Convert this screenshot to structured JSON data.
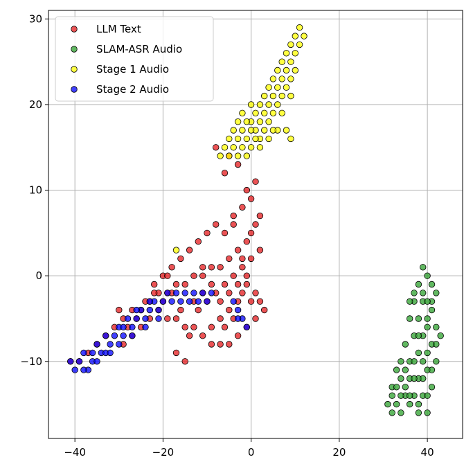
{
  "chart_data": {
    "type": "scatter",
    "title": "",
    "xlabel": "",
    "ylabel": "",
    "xlim": [
      -46,
      48
    ],
    "ylim": [
      -19,
      31
    ],
    "xticks": [
      -40,
      -20,
      0,
      20,
      40
    ],
    "yticks": [
      -10,
      0,
      10,
      20,
      30
    ],
    "xtick_labels": [
      "−40",
      "−20",
      "0",
      "20",
      "40"
    ],
    "ytick_labels": [
      "−10",
      "0",
      "10",
      "20",
      "30"
    ],
    "grid": true,
    "legend_position": "top-left",
    "series": [
      {
        "name": "LLM Text",
        "color": "#e41a1c",
        "points": [
          [
            -41,
            -10
          ],
          [
            -39,
            -10
          ],
          [
            -37,
            -9
          ],
          [
            -35,
            -8
          ],
          [
            -33,
            -7
          ],
          [
            -31,
            -6
          ],
          [
            -29,
            -5
          ],
          [
            -27,
            -4
          ],
          [
            -25,
            -4
          ],
          [
            -23,
            -3
          ],
          [
            -21,
            -2
          ],
          [
            -19,
            -2
          ],
          [
            -17,
            -1
          ],
          [
            -15,
            -1
          ],
          [
            -13,
            0
          ],
          [
            -11,
            0
          ],
          [
            -9,
            1
          ],
          [
            -7,
            1
          ],
          [
            -5,
            2
          ],
          [
            -3,
            3
          ],
          [
            -1,
            4
          ],
          [
            0,
            5
          ],
          [
            1,
            6
          ],
          [
            2,
            7
          ],
          [
            -2,
            8
          ],
          [
            0,
            9
          ],
          [
            -1,
            10
          ],
          [
            1,
            11
          ],
          [
            -6,
            12
          ],
          [
            -3,
            13
          ],
          [
            -5,
            14
          ],
          [
            -8,
            15
          ],
          [
            -4,
            6
          ],
          [
            -6,
            5
          ],
          [
            -2,
            2
          ],
          [
            -1,
            -1
          ],
          [
            1,
            -2
          ],
          [
            2,
            -3
          ],
          [
            3,
            -4
          ],
          [
            1,
            -5
          ],
          [
            -1,
            -6
          ],
          [
            -3,
            -7
          ],
          [
            -5,
            -8
          ],
          [
            -7,
            -8
          ],
          [
            -9,
            -8
          ],
          [
            -11,
            -7
          ],
          [
            -13,
            -6
          ],
          [
            -15,
            -6
          ],
          [
            -17,
            -5
          ],
          [
            -19,
            -5
          ],
          [
            -21,
            -4
          ],
          [
            -23,
            -5
          ],
          [
            -25,
            -6
          ],
          [
            -27,
            -7
          ],
          [
            -29,
            -8
          ],
          [
            -17,
            -9
          ],
          [
            -15,
            -10
          ],
          [
            -12,
            -4
          ],
          [
            -10,
            -3
          ],
          [
            -8,
            -2
          ],
          [
            -6,
            -1
          ],
          [
            -4,
            0
          ],
          [
            -2,
            1
          ],
          [
            0,
            2
          ],
          [
            2,
            3
          ],
          [
            -3,
            -3
          ],
          [
            -5,
            -4
          ],
          [
            -7,
            -5
          ],
          [
            -9,
            -6
          ],
          [
            -11,
            -2
          ],
          [
            -13,
            -3
          ],
          [
            -20,
            0
          ],
          [
            -18,
            1
          ],
          [
            -16,
            2
          ],
          [
            -14,
            3
          ],
          [
            -12,
            4
          ],
          [
            -10,
            5
          ],
          [
            -8,
            6
          ],
          [
            -4,
            7
          ],
          [
            -2,
            -2
          ],
          [
            0,
            -3
          ],
          [
            -4,
            -5
          ],
          [
            -6,
            -6
          ],
          [
            -14,
            -7
          ],
          [
            -20,
            -3
          ],
          [
            -22,
            -2
          ],
          [
            -24,
            -3
          ],
          [
            -26,
            -5
          ],
          [
            -28,
            -6
          ],
          [
            -30,
            -4
          ],
          [
            -16,
            -4
          ],
          [
            -18,
            -2
          ],
          [
            -19,
            0
          ],
          [
            -22,
            -1
          ],
          [
            -11,
            1
          ],
          [
            -9,
            -1
          ],
          [
            -7,
            -3
          ],
          [
            -5,
            -2
          ],
          [
            -3,
            -1
          ],
          [
            -1,
            0
          ]
        ]
      },
      {
        "name": "SLAM-ASR Audio",
        "color": "#2ca02c",
        "points": [
          [
            39,
            1
          ],
          [
            40,
            0
          ],
          [
            41,
            -1
          ],
          [
            38,
            -1
          ],
          [
            42,
            -2
          ],
          [
            39,
            -3
          ],
          [
            37,
            -3
          ],
          [
            41,
            -4
          ],
          [
            40,
            -5
          ],
          [
            38,
            -5
          ],
          [
            36,
            -5
          ],
          [
            42,
            -6
          ],
          [
            39,
            -7
          ],
          [
            37,
            -7
          ],
          [
            35,
            -8
          ],
          [
            41,
            -8
          ],
          [
            40,
            -9
          ],
          [
            38,
            -9
          ],
          [
            36,
            -10
          ],
          [
            34,
            -10
          ],
          [
            33,
            -11
          ],
          [
            40,
            -11
          ],
          [
            38,
            -12
          ],
          [
            36,
            -12
          ],
          [
            34,
            -12
          ],
          [
            32,
            -13
          ],
          [
            41,
            -13
          ],
          [
            39,
            -14
          ],
          [
            37,
            -14
          ],
          [
            35,
            -14
          ],
          [
            33,
            -15
          ],
          [
            31,
            -15
          ],
          [
            40,
            -16
          ],
          [
            38,
            -16
          ],
          [
            36,
            -15
          ],
          [
            34,
            -16
          ],
          [
            32,
            -16
          ],
          [
            39,
            -2
          ],
          [
            41,
            -3
          ],
          [
            37,
            -2
          ],
          [
            36,
            -3
          ],
          [
            40,
            -6
          ],
          [
            38,
            -7
          ],
          [
            42,
            -8
          ],
          [
            35,
            -11
          ],
          [
            37,
            -10
          ],
          [
            39,
            -10
          ],
          [
            41,
            -11
          ],
          [
            33,
            -13
          ],
          [
            35,
            -13
          ],
          [
            37,
            -12
          ],
          [
            39,
            -12
          ],
          [
            34,
            -14
          ],
          [
            36,
            -14
          ],
          [
            38,
            -15
          ],
          [
            40,
            -14
          ],
          [
            32,
            -14
          ],
          [
            42,
            -10
          ],
          [
            43,
            -7
          ],
          [
            40,
            -3
          ]
        ]
      },
      {
        "name": "Stage 1 Audio",
        "color": "#ffff00",
        "points": [
          [
            11,
            29
          ],
          [
            10,
            28
          ],
          [
            12,
            28
          ],
          [
            9,
            27
          ],
          [
            11,
            27
          ],
          [
            8,
            26
          ],
          [
            10,
            26
          ],
          [
            7,
            25
          ],
          [
            9,
            25
          ],
          [
            6,
            24
          ],
          [
            8,
            24
          ],
          [
            10,
            24
          ],
          [
            5,
            23
          ],
          [
            7,
            23
          ],
          [
            9,
            23
          ],
          [
            4,
            22
          ],
          [
            6,
            22
          ],
          [
            8,
            22
          ],
          [
            3,
            21
          ],
          [
            5,
            21
          ],
          [
            7,
            21
          ],
          [
            2,
            20
          ],
          [
            4,
            20
          ],
          [
            6,
            20
          ],
          [
            1,
            19
          ],
          [
            3,
            19
          ],
          [
            5,
            19
          ],
          [
            0,
            18
          ],
          [
            2,
            18
          ],
          [
            4,
            18
          ],
          [
            -1,
            18
          ],
          [
            1,
            17
          ],
          [
            3,
            17
          ],
          [
            -2,
            17
          ],
          [
            0,
            17
          ],
          [
            2,
            16
          ],
          [
            -3,
            16
          ],
          [
            -1,
            16
          ],
          [
            1,
            16
          ],
          [
            -4,
            15
          ],
          [
            -2,
            15
          ],
          [
            0,
            15
          ],
          [
            -5,
            14
          ],
          [
            -3,
            14
          ],
          [
            -1,
            14
          ],
          [
            -6,
            15
          ],
          [
            -7,
            14
          ],
          [
            9,
            16
          ],
          [
            8,
            17
          ],
          [
            6,
            17
          ],
          [
            4,
            16
          ],
          [
            -4,
            17
          ],
          [
            -2,
            19
          ],
          [
            0,
            20
          ],
          [
            -5,
            16
          ],
          [
            -3,
            18
          ],
          [
            2,
            15
          ],
          [
            5,
            17
          ],
          [
            7,
            19
          ],
          [
            9,
            21
          ],
          [
            -17,
            3
          ]
        ]
      },
      {
        "name": "Stage 2 Audio",
        "color": "#0000ff",
        "points": [
          [
            -41,
            -10
          ],
          [
            -40,
            -11
          ],
          [
            -39,
            -10
          ],
          [
            -38,
            -9
          ],
          [
            -37,
            -11
          ],
          [
            -36,
            -9
          ],
          [
            -35,
            -8
          ],
          [
            -34,
            -9
          ],
          [
            -33,
            -7
          ],
          [
            -32,
            -8
          ],
          [
            -31,
            -7
          ],
          [
            -30,
            -6
          ],
          [
            -29,
            -7
          ],
          [
            -28,
            -5
          ],
          [
            -27,
            -6
          ],
          [
            -26,
            -5
          ],
          [
            -25,
            -4
          ],
          [
            -24,
            -5
          ],
          [
            -23,
            -4
          ],
          [
            -22,
            -3
          ],
          [
            -21,
            -4
          ],
          [
            -20,
            -3
          ],
          [
            -19,
            -2
          ],
          [
            -18,
            -3
          ],
          [
            -17,
            -2
          ],
          [
            -16,
            -3
          ],
          [
            -15,
            -2
          ],
          [
            -14,
            -3
          ],
          [
            -13,
            -2
          ],
          [
            -12,
            -3
          ],
          [
            -11,
            -2
          ],
          [
            -10,
            -3
          ],
          [
            -9,
            -2
          ],
          [
            -4,
            -3
          ],
          [
            -3,
            -4
          ],
          [
            -2,
            -5
          ],
          [
            -3,
            -5
          ],
          [
            -1,
            -6
          ],
          [
            -36,
            -10
          ],
          [
            -33,
            -9
          ],
          [
            -30,
            -8
          ],
          [
            -27,
            -7
          ],
          [
            -24,
            -6
          ],
          [
            -21,
            -5
          ],
          [
            -38,
            -11
          ],
          [
            -35,
            -10
          ],
          [
            -32,
            -9
          ],
          [
            -29,
            -6
          ],
          [
            -26,
            -4
          ],
          [
            -23,
            -3
          ]
        ]
      }
    ]
  }
}
